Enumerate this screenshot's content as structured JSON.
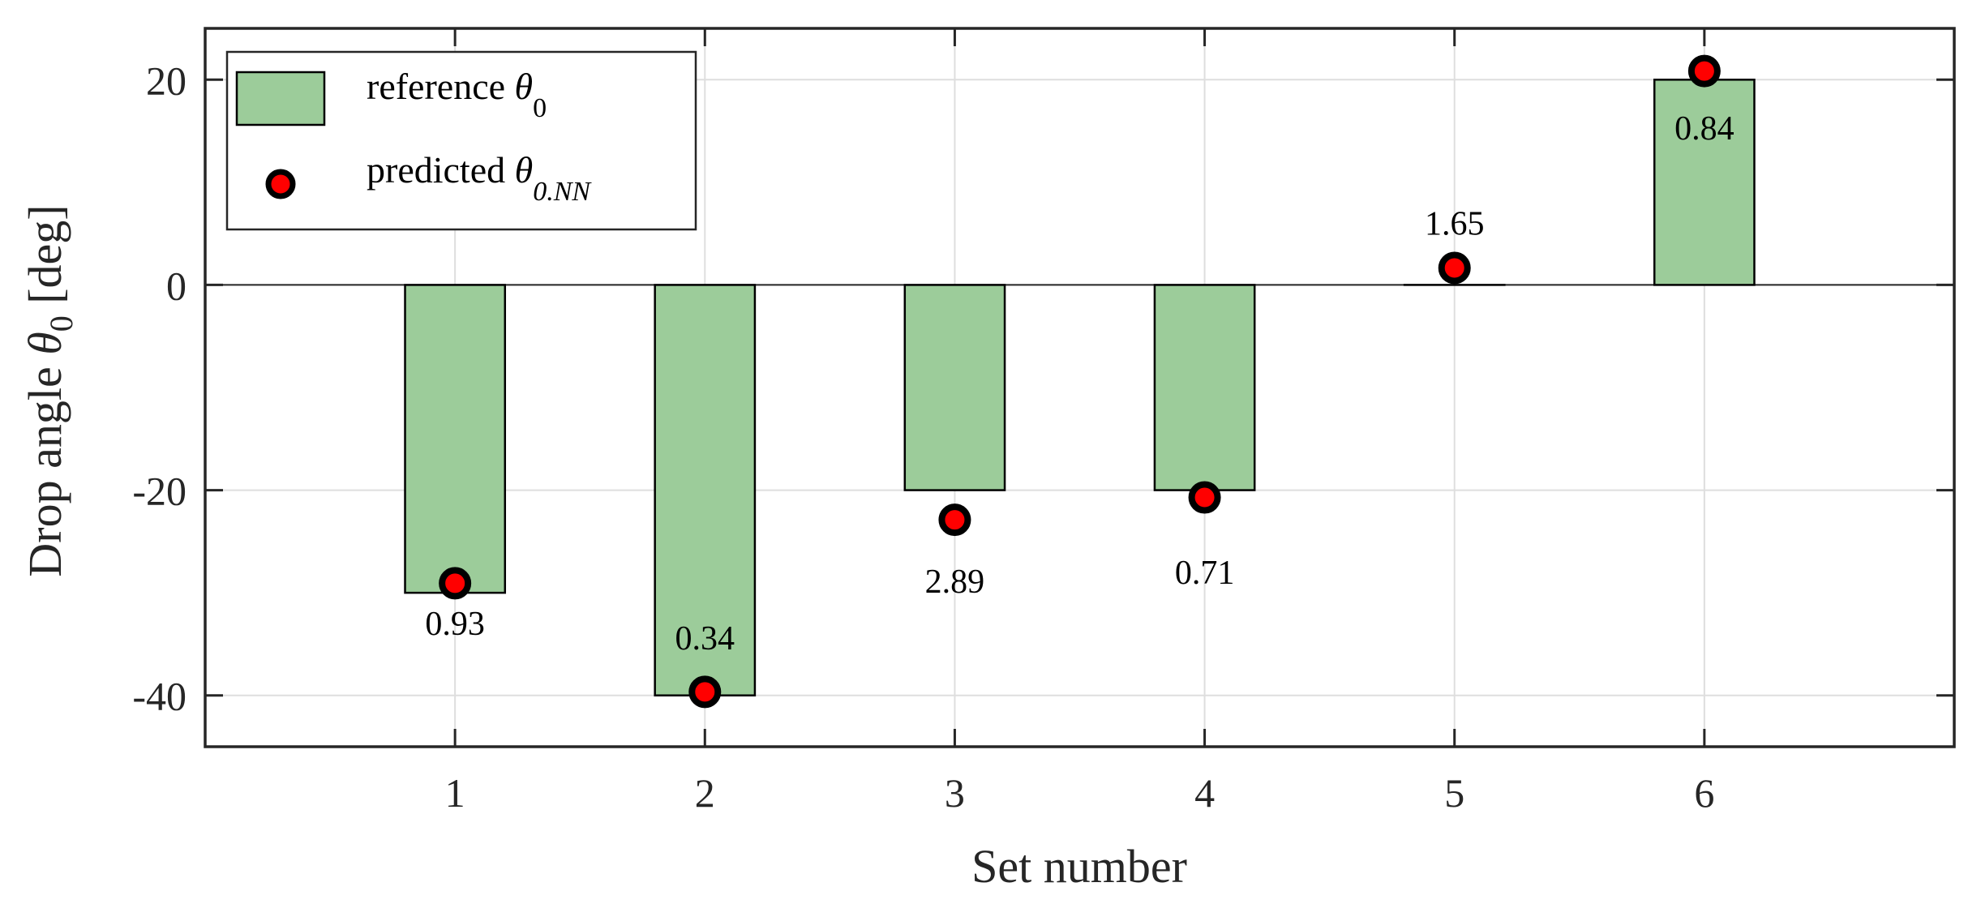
{
  "chart_data": {
    "type": "bar",
    "title": "",
    "xlabel": "Set number",
    "ylabel": {
      "prefix": "Drop angle ",
      "symbol": "θ",
      "subscript": "0",
      "suffix": " [deg]"
    },
    "categories": [
      "1",
      "2",
      "3",
      "4",
      "5",
      "6"
    ],
    "x": [
      1,
      2,
      3,
      4,
      5,
      6
    ],
    "xlim": [
      0,
      7
    ],
    "ylim": [
      -45,
      25
    ],
    "yticks": [
      -40,
      -20,
      0,
      20
    ],
    "ytick_labels": [
      "-40",
      "-20",
      "0",
      "20"
    ],
    "xticks": [
      1,
      2,
      3,
      4,
      5,
      6
    ],
    "xtick_labels": [
      "1",
      "2",
      "3",
      "4",
      "5",
      "6"
    ],
    "grid": true,
    "legend_position": "upper left",
    "bar_width": 0.4,
    "series": [
      {
        "name": "reference θ0",
        "type": "bar",
        "values": [
          -30,
          -40,
          -20,
          -20,
          0,
          20
        ],
        "color": "#9ccc9a",
        "edge_color": "#000000"
      },
      {
        "name": "predicted θ0.NN",
        "type": "scatter",
        "values": [
          -29.07,
          -39.66,
          -22.89,
          -20.71,
          1.65,
          20.84
        ],
        "color": "#ff0000",
        "edge_color": "#000000"
      }
    ],
    "annotations": [
      {
        "x": 1,
        "text": "0.93",
        "y": -33.0
      },
      {
        "x": 2,
        "text": "0.34",
        "y": -34.4
      },
      {
        "x": 3,
        "text": "2.89",
        "y": -28.9
      },
      {
        "x": 4,
        "text": "0.71",
        "y": -28.0
      },
      {
        "x": 5,
        "text": "1.65",
        "y": 6.0
      },
      {
        "x": 6,
        "text": "0.84",
        "y": 15.3
      }
    ]
  },
  "legend": {
    "items": [
      {
        "label": "reference ",
        "symbol": "θ",
        "subscript": "0",
        "marker": "bar-swatch"
      },
      {
        "label": "predicted ",
        "symbol": "θ",
        "subscript": "0.NN",
        "marker": "circle"
      }
    ]
  },
  "style": {
    "axis_color": "#262626",
    "grid_color": "#dedede",
    "bar_color": "#9ccc9a",
    "marker_color": "#ff0000",
    "marker_edge": "#000000"
  }
}
